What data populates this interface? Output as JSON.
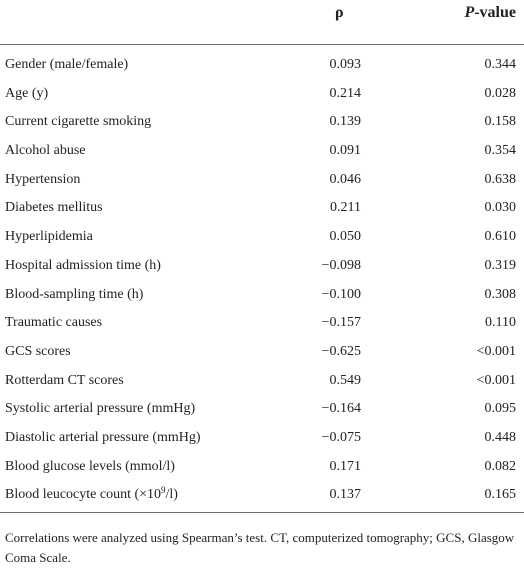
{
  "table": {
    "header": {
      "rho": "ρ",
      "p_italic": "P",
      "p_suffix": "-value"
    },
    "rows": [
      {
        "variable": "Gender (male/female)",
        "rho": "0.093",
        "p": "0.344"
      },
      {
        "variable": "Age (y)",
        "rho": "0.214",
        "p": "0.028"
      },
      {
        "variable": "Current cigarette smoking",
        "rho": "0.139",
        "p": "0.158"
      },
      {
        "variable": "Alcohol abuse",
        "rho": "0.091",
        "p": "0.354"
      },
      {
        "variable": "Hypertension",
        "rho": "0.046",
        "p": "0.638"
      },
      {
        "variable": "Diabetes mellitus",
        "rho": "0.211",
        "p": "0.030"
      },
      {
        "variable": "Hyperlipidemia",
        "rho": "0.050",
        "p": "0.610"
      },
      {
        "variable": "Hospital admission time (h)",
        "rho": "−0.098",
        "p": "0.319"
      },
      {
        "variable": "Blood-sampling time (h)",
        "rho": "−0.100",
        "p": "0.308"
      },
      {
        "variable": "Traumatic causes",
        "rho": "−0.157",
        "p": "0.110"
      },
      {
        "variable": "GCS scores",
        "rho": "−0.625",
        "p": "<0.001"
      },
      {
        "variable": "Rotterdam CT scores",
        "rho": "0.549",
        "p": "<0.001"
      },
      {
        "variable": "Systolic arterial pressure (mmHg)",
        "rho": "−0.164",
        "p": "0.095"
      },
      {
        "variable": "Diastolic arterial pressure (mmHg)",
        "rho": "−0.075",
        "p": "0.448"
      },
      {
        "variable": "Blood glucose levels (mmol/l)",
        "rho": "0.171",
        "p": "0.082"
      },
      {
        "variable_prefix": "Blood leucocyte count (×10",
        "variable_sup": "9",
        "variable_suffix": "/l)",
        "rho": "0.137",
        "p": "0.165"
      }
    ],
    "footnote": "Correlations were analyzed using Spearman’s test. CT, computerized tomography; GCS, Glasgow Coma Scale."
  }
}
